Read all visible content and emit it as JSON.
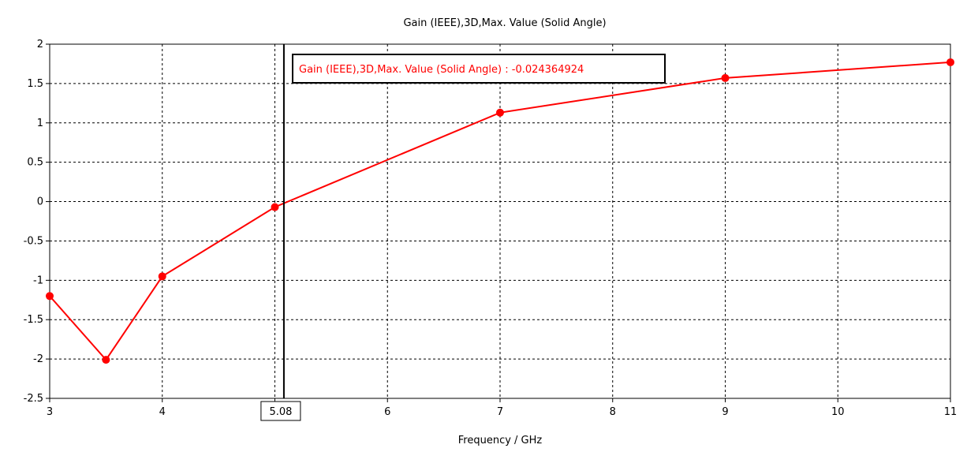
{
  "chart_data": {
    "type": "line",
    "title": "Gain (IEEE),3D,Max. Value (Solid Angle)",
    "xlabel": "Frequency / GHz",
    "ylabel": "",
    "xlim": [
      3,
      11
    ],
    "ylim": [
      -2.5,
      2
    ],
    "x_ticks": [
      "3",
      "4",
      "5",
      "6",
      "7",
      "8",
      "9",
      "10",
      "11"
    ],
    "y_ticks": [
      "2",
      "1.5",
      "1",
      "0.5",
      "0",
      "-0.5",
      "-1",
      "-1.5",
      "-2",
      "-2.5"
    ],
    "grid": true,
    "series": [
      {
        "color": "#ff0000",
        "x": [
          3,
          3.5,
          4,
          5,
          7,
          9,
          11
        ],
        "y": [
          -1.2,
          -2.01,
          -0.95,
          -0.07,
          1.13,
          1.57,
          1.77
        ]
      }
    ],
    "marker": {
      "x": 5.08,
      "label": "5.08",
      "readout": "Gain (IEEE),3D,Max. Value (Solid Angle) : -0.024364924"
    }
  }
}
